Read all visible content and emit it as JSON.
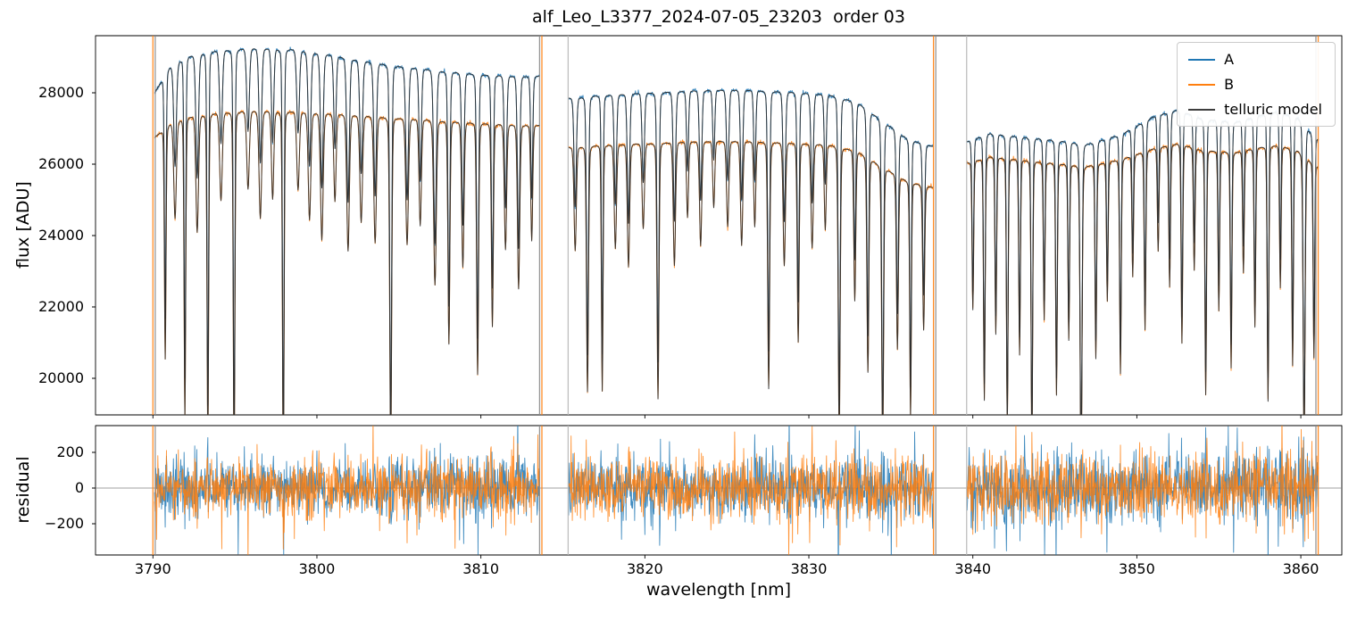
{
  "chart_data": {
    "type": "line",
    "title": "alf_Leo_L3377_2024-07-05_23203  order 03",
    "xlabel": "wavelength [nm]",
    "ylabel_flux": "flux [ADU]",
    "ylabel_residual": "residual",
    "grid": false,
    "xlim": [
      3786.5,
      3862.5
    ],
    "xticks": [
      3790,
      3800,
      3810,
      3820,
      3830,
      3840,
      3850,
      3860
    ],
    "flux_ylim": [
      18975,
      29600
    ],
    "flux_yticks": [
      20000,
      22000,
      24000,
      26000,
      28000
    ],
    "residual_ylim": [
      -375,
      350
    ],
    "residual_yticks": [
      -200,
      0,
      200
    ],
    "legend": [
      {
        "label": "A",
        "color": "#1f77b4"
      },
      {
        "label": "B",
        "color": "#ff7f0e"
      },
      {
        "label": "telluric model",
        "color": "#3d3d3d"
      }
    ],
    "zero_line_color": "#808080",
    "noise": {
      "flux_sigma": 28,
      "residual_sigma": 75,
      "seed": 42
    },
    "segments": [
      {
        "x0": 3790.1,
        "x1": 3813.6,
        "continuum_A": [
          [
            3790.1,
            28000
          ],
          [
            3791.0,
            28750
          ],
          [
            3792.0,
            29050
          ],
          [
            3793.5,
            29200
          ],
          [
            3796.0,
            29280
          ],
          [
            3798.5,
            29250
          ],
          [
            3800.5,
            29120
          ],
          [
            3802.5,
            28950
          ],
          [
            3805.0,
            28780
          ],
          [
            3807.5,
            28650
          ],
          [
            3810.0,
            28550
          ],
          [
            3812.0,
            28500
          ],
          [
            3813.6,
            28480
          ]
        ],
        "continuum_B": [
          [
            3790.1,
            26750
          ],
          [
            3791.0,
            27150
          ],
          [
            3792.0,
            27350
          ],
          [
            3793.5,
            27450
          ],
          [
            3796.0,
            27520
          ],
          [
            3798.5,
            27500
          ],
          [
            3800.5,
            27450
          ],
          [
            3802.5,
            27400
          ],
          [
            3805.0,
            27320
          ],
          [
            3807.5,
            27250
          ],
          [
            3810.0,
            27180
          ],
          [
            3812.0,
            27130
          ],
          [
            3813.6,
            27100
          ]
        ]
      },
      {
        "x0": 3815.35,
        "x1": 3837.6,
        "continuum_A": [
          [
            3815.35,
            27870
          ],
          [
            3817.0,
            27950
          ],
          [
            3820.0,
            28020
          ],
          [
            3823.0,
            28080
          ],
          [
            3826.0,
            28100
          ],
          [
            3829.0,
            28050
          ],
          [
            3831.5,
            27950
          ],
          [
            3833.0,
            27750
          ],
          [
            3834.5,
            27250
          ],
          [
            3836.0,
            26750
          ],
          [
            3837.6,
            26500
          ]
        ],
        "continuum_B": [
          [
            3815.35,
            26480
          ],
          [
            3817.0,
            26550
          ],
          [
            3820.0,
            26600
          ],
          [
            3823.0,
            26650
          ],
          [
            3826.0,
            26660
          ],
          [
            3829.0,
            26620
          ],
          [
            3831.5,
            26550
          ],
          [
            3833.0,
            26380
          ],
          [
            3834.5,
            25950
          ],
          [
            3836.0,
            25550
          ],
          [
            3837.6,
            25350
          ]
        ]
      },
      {
        "x0": 3839.65,
        "x1": 3861.1,
        "continuum_A": [
          [
            3839.65,
            26650
          ],
          [
            3841.0,
            26900
          ],
          [
            3843.0,
            26800
          ],
          [
            3845.0,
            26700
          ],
          [
            3847.0,
            26600
          ],
          [
            3849.0,
            26850
          ],
          [
            3851.0,
            27350
          ],
          [
            3852.5,
            27550
          ],
          [
            3854.0,
            27300
          ],
          [
            3856.0,
            27200
          ],
          [
            3857.5,
            27400
          ],
          [
            3858.5,
            27500
          ],
          [
            3859.8,
            27350
          ],
          [
            3861.1,
            26700
          ]
        ],
        "continuum_B": [
          [
            3839.65,
            26050
          ],
          [
            3841.0,
            26250
          ],
          [
            3843.0,
            26150
          ],
          [
            3845.0,
            26050
          ],
          [
            3847.0,
            25980
          ],
          [
            3849.0,
            26150
          ],
          [
            3851.0,
            26450
          ],
          [
            3852.5,
            26600
          ],
          [
            3854.0,
            26420
          ],
          [
            3856.0,
            26350
          ],
          [
            3857.5,
            26500
          ],
          [
            3858.5,
            26550
          ],
          [
            3859.8,
            26430
          ],
          [
            3861.1,
            25950
          ]
        ]
      }
    ],
    "absorption_lines": [
      [
        3790.75,
        0.24,
        0.05
      ],
      [
        3791.35,
        0.1,
        0.08
      ],
      [
        3791.95,
        0.31,
        0.05
      ],
      [
        3792.7,
        0.12,
        0.08
      ],
      [
        3793.35,
        0.34,
        0.05
      ],
      [
        3794.15,
        0.09,
        0.08
      ],
      [
        3794.95,
        0.37,
        0.05
      ],
      [
        3795.8,
        0.08,
        0.08
      ],
      [
        3796.55,
        0.11,
        0.08
      ],
      [
        3797.3,
        0.09,
        0.07
      ],
      [
        3797.95,
        0.38,
        0.05
      ],
      [
        3798.85,
        0.08,
        0.08
      ],
      [
        3799.55,
        0.11,
        0.08
      ],
      [
        3800.3,
        0.13,
        0.08
      ],
      [
        3801.1,
        0.09,
        0.07
      ],
      [
        3801.9,
        0.14,
        0.08
      ],
      [
        3802.7,
        0.11,
        0.08
      ],
      [
        3803.55,
        0.13,
        0.08
      ],
      [
        3804.5,
        0.35,
        0.06
      ],
      [
        3805.5,
        0.13,
        0.08
      ],
      [
        3806.3,
        0.11,
        0.07
      ],
      [
        3807.2,
        0.17,
        0.08
      ],
      [
        3808.05,
        0.23,
        0.06
      ],
      [
        3808.9,
        0.15,
        0.07
      ],
      [
        3809.8,
        0.26,
        0.06
      ],
      [
        3810.7,
        0.21,
        0.06
      ],
      [
        3811.5,
        0.13,
        0.07
      ],
      [
        3812.3,
        0.17,
        0.07
      ],
      [
        3813.1,
        0.12,
        0.06
      ],
      [
        3815.75,
        0.11,
        0.07
      ],
      [
        3816.5,
        0.26,
        0.06
      ],
      [
        3817.4,
        0.26,
        0.05
      ],
      [
        3818.2,
        0.11,
        0.07
      ],
      [
        3819.0,
        0.13,
        0.07
      ],
      [
        3819.9,
        0.09,
        0.07
      ],
      [
        3820.8,
        0.27,
        0.06
      ],
      [
        3821.8,
        0.13,
        0.07
      ],
      [
        3822.6,
        0.08,
        0.06
      ],
      [
        3823.4,
        0.11,
        0.07
      ],
      [
        3824.2,
        0.07,
        0.06
      ],
      [
        3825.05,
        0.09,
        0.07
      ],
      [
        3825.9,
        0.11,
        0.07
      ],
      [
        3826.7,
        0.09,
        0.06
      ],
      [
        3827.55,
        0.26,
        0.06
      ],
      [
        3828.5,
        0.13,
        0.07
      ],
      [
        3829.35,
        0.21,
        0.06
      ],
      [
        3830.2,
        0.11,
        0.07
      ],
      [
        3831.0,
        0.09,
        0.06
      ],
      [
        3831.85,
        0.31,
        0.06
      ],
      [
        3832.8,
        0.16,
        0.06
      ],
      [
        3833.6,
        0.23,
        0.06
      ],
      [
        3834.5,
        0.31,
        0.06
      ],
      [
        3835.4,
        0.19,
        0.06
      ],
      [
        3836.2,
        0.26,
        0.05
      ],
      [
        3837.0,
        0.16,
        0.06
      ],
      [
        3840.0,
        0.16,
        0.05
      ],
      [
        3840.7,
        0.26,
        0.05
      ],
      [
        3841.4,
        0.19,
        0.05
      ],
      [
        3842.1,
        0.29,
        0.05
      ],
      [
        3842.85,
        0.21,
        0.05
      ],
      [
        3843.6,
        0.31,
        0.05
      ],
      [
        3844.35,
        0.17,
        0.05
      ],
      [
        3845.1,
        0.25,
        0.05
      ],
      [
        3845.85,
        0.19,
        0.05
      ],
      [
        3846.6,
        0.34,
        0.06
      ],
      [
        3847.5,
        0.21,
        0.05
      ],
      [
        3848.2,
        0.15,
        0.05
      ],
      [
        3849.0,
        0.23,
        0.05
      ],
      [
        3849.75,
        0.13,
        0.05
      ],
      [
        3850.5,
        0.19,
        0.05
      ],
      [
        3851.3,
        0.11,
        0.05
      ],
      [
        3852.0,
        0.15,
        0.05
      ],
      [
        3852.75,
        0.21,
        0.05
      ],
      [
        3853.5,
        0.13,
        0.05
      ],
      [
        3854.2,
        0.26,
        0.05
      ],
      [
        3855.0,
        0.17,
        0.05
      ],
      [
        3855.75,
        0.23,
        0.05
      ],
      [
        3856.5,
        0.13,
        0.05
      ],
      [
        3857.2,
        0.19,
        0.05
      ],
      [
        3858.0,
        0.27,
        0.05
      ],
      [
        3858.75,
        0.15,
        0.05
      ],
      [
        3859.5,
        0.23,
        0.05
      ],
      [
        3860.2,
        0.31,
        0.06
      ],
      [
        3860.8,
        0.21,
        0.05
      ]
    ],
    "vertical_lines": [
      {
        "x": 3790.0,
        "color": "#ff7f0e"
      },
      {
        "x": 3790.14,
        "color": "#8a8a8a"
      },
      {
        "x": 3813.58,
        "color": "#8a8a8a"
      },
      {
        "x": 3813.72,
        "color": "#ff7f0e"
      },
      {
        "x": 3815.32,
        "color": "#b8b8b8"
      },
      {
        "x": 3837.6,
        "color": "#ff7f0e"
      },
      {
        "x": 3837.74,
        "color": "#8a8a8a"
      },
      {
        "x": 3839.62,
        "color": "#b8b8b8"
      },
      {
        "x": 3860.92,
        "color": "#8a8a8a"
      },
      {
        "x": 3861.06,
        "color": "#ff7f0e"
      }
    ]
  }
}
